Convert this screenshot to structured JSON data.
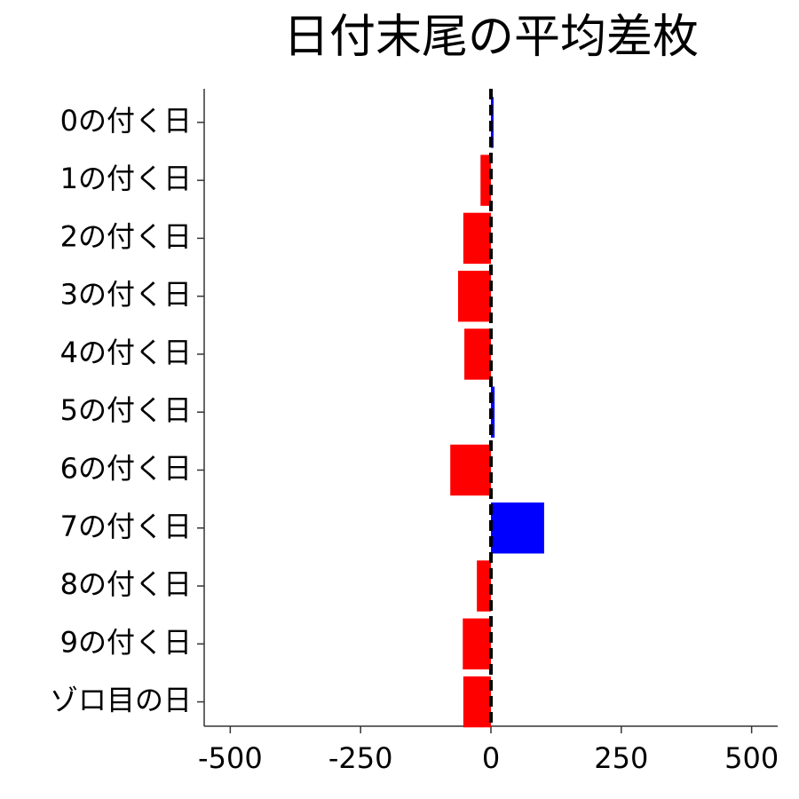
{
  "chart_data": {
    "type": "barh",
    "title": "日付末尾の平均差枚",
    "categories": [
      "0の付く日",
      "1の付く日",
      "2の付く日",
      "3の付く日",
      "4の付く日",
      "5の付く日",
      "6の付く日",
      "7の付く日",
      "8の付く日",
      "9の付く日",
      "ゾロ目の日"
    ],
    "values": [
      5,
      -20,
      -53,
      -63,
      -51,
      7,
      -78,
      102,
      -27,
      -54,
      -53
    ],
    "colors": [
      "#0000ff",
      "#ff0000",
      "#ff0000",
      "#ff0000",
      "#ff0000",
      "#0000ff",
      "#ff0000",
      "#0000ff",
      "#ff0000",
      "#ff0000",
      "#ff0000"
    ],
    "xlim": [
      -550,
      550
    ],
    "xticks": [
      -500,
      -250,
      0,
      250,
      500
    ],
    "zero_line": true
  }
}
